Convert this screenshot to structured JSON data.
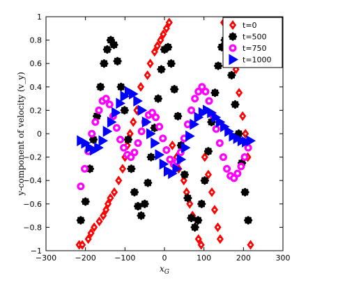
{
  "chart_data": {
    "type": "scatter",
    "xlabel": "x_G",
    "ylabel": "y-component of velocity (v_y)",
    "xlim": [
      -300,
      300
    ],
    "ylim": [
      -1,
      1
    ],
    "xticks": [
      "−300",
      "−200",
      "−100",
      "0",
      "100",
      "200",
      "300"
    ],
    "yticks": [
      "−1",
      "−0.8",
      "−0.6",
      "−0.4",
      "−0.2",
      "0",
      "0.2",
      "0.4",
      "0.6",
      "0.8",
      "1"
    ],
    "grid": false,
    "legend_position": "top-right",
    "series": [
      {
        "name": "t=0",
        "color": "#ff0000",
        "marker": "diamond",
        "x": [
          -216,
          -208,
          -193,
          -186,
          -178,
          -165,
          -155,
          -148,
          -143,
          -137,
          -127,
          -116,
          -106,
          -100,
          -94,
          -87,
          -79,
          -70,
          -60,
          -43,
          -36,
          -25,
          -18,
          -10,
          -3,
          5,
          12,
          20,
          31,
          36,
          49,
          56,
          64,
          71,
          77,
          86,
          93,
          102,
          111,
          120,
          127,
          135,
          141,
          150,
          160,
          173,
          181,
          189,
          198,
          205,
          211,
          218
        ],
        "y": [
          -0.95,
          -0.95,
          -0.9,
          -0.85,
          -0.8,
          -0.75,
          -0.7,
          -0.65,
          -0.6,
          -0.55,
          -0.5,
          -0.4,
          -0.3,
          -0.2,
          -0.1,
          0.0,
          0.1,
          0.2,
          0.4,
          0.5,
          0.6,
          0.7,
          0.75,
          0.8,
          0.85,
          0.9,
          0.95,
          -0.1,
          -0.2,
          -0.3,
          -0.4,
          -0.5,
          -0.6,
          -0.7,
          -0.8,
          -0.9,
          -0.95,
          -0.2,
          -0.35,
          -0.5,
          -0.65,
          -0.8,
          -0.9,
          0.95,
          0.85,
          0.7,
          0.55,
          0.35,
          0.15,
          0.0,
          -0.2,
          -0.95
        ]
      },
      {
        "name": "t=500",
        "color": "#000000",
        "marker": "circle",
        "x": [
          -212,
          -200,
          -189,
          -180,
          -171,
          -162,
          -153,
          -145,
          -136,
          -128,
          -119,
          -110,
          -101,
          -92,
          -84,
          -76,
          -67,
          -59,
          -50,
          -42,
          -34,
          -25,
          -16,
          -8,
          0,
          9,
          17,
          25,
          34,
          42,
          51,
          59,
          68,
          77,
          85,
          94,
          102,
          111,
          119,
          128,
          136,
          145,
          153,
          162,
          170,
          179,
          188,
          196,
          204,
          212
        ],
        "y": [
          -0.74,
          -0.58,
          -0.3,
          -0.05,
          0.15,
          0.4,
          0.6,
          0.72,
          0.8,
          0.76,
          0.62,
          0.4,
          0.2,
          -0.05,
          -0.3,
          -0.5,
          -0.62,
          -0.7,
          -0.6,
          -0.42,
          -0.2,
          0.05,
          0.3,
          0.55,
          0.72,
          0.74,
          0.6,
          0.38,
          0.15,
          -0.1,
          -0.35,
          -0.55,
          -0.72,
          -0.8,
          -0.74,
          -0.6,
          -0.4,
          -0.15,
          0.1,
          0.35,
          0.58,
          0.74,
          0.8,
          0.7,
          0.5,
          0.25,
          0.0,
          -0.25,
          -0.5,
          -0.74
        ]
      },
      {
        "name": "t=750",
        "color": "#ff00ff",
        "marker": "circle",
        "x": [
          -212,
          -202,
          -193,
          -184,
          -175,
          -166,
          -157,
          -148,
          -139,
          -130,
          -121,
          -112,
          -103,
          -94,
          -85,
          -76,
          -67,
          -58,
          -49,
          -40,
          -31,
          -22,
          -13,
          -4,
          5,
          14,
          23,
          32,
          41,
          50,
          59,
          68,
          77,
          86,
          95,
          104,
          113,
          122,
          131,
          140,
          149,
          158,
          167,
          176,
          185,
          194,
          203,
          212
        ],
        "y": [
          -0.45,
          -0.3,
          -0.15,
          0.0,
          0.1,
          0.2,
          0.28,
          0.3,
          0.25,
          0.15,
          0.05,
          -0.05,
          -0.12,
          -0.18,
          -0.2,
          -0.16,
          -0.08,
          0.02,
          0.1,
          0.16,
          0.18,
          0.14,
          0.06,
          -0.04,
          -0.14,
          -0.22,
          -0.26,
          -0.24,
          -0.16,
          -0.04,
          0.08,
          0.2,
          0.3,
          0.36,
          0.4,
          0.36,
          0.28,
          0.16,
          0.04,
          -0.08,
          -0.2,
          -0.3,
          -0.36,
          -0.38,
          -0.34,
          -0.28,
          -0.2,
          -0.12
        ]
      },
      {
        "name": "t=1000",
        "color": "#0000ff",
        "marker": "triangle-right",
        "x": [
          -212,
          -201,
          -190,
          -179,
          -168,
          -157,
          -146,
          -135,
          -124,
          -113,
          -102,
          -91,
          -80,
          -69,
          -58,
          -47,
          -36,
          -25,
          -14,
          -3,
          8,
          19,
          30,
          41,
          52,
          63,
          74,
          85,
          96,
          107,
          118,
          129,
          140,
          151,
          162,
          173,
          184,
          195,
          206,
          217
        ],
        "y": [
          -0.06,
          -0.08,
          -0.12,
          -0.14,
          -0.12,
          -0.06,
          0.02,
          0.1,
          0.18,
          0.26,
          0.32,
          0.36,
          0.34,
          0.28,
          0.2,
          0.1,
          0.0,
          -0.08,
          -0.18,
          -0.26,
          -0.32,
          -0.34,
          -0.3,
          -0.22,
          -0.12,
          -0.02,
          0.08,
          0.14,
          0.18,
          0.2,
          0.18,
          0.14,
          0.1,
          0.06,
          0.02,
          -0.02,
          -0.04,
          -0.06,
          -0.07,
          -0.06
        ]
      }
    ]
  }
}
